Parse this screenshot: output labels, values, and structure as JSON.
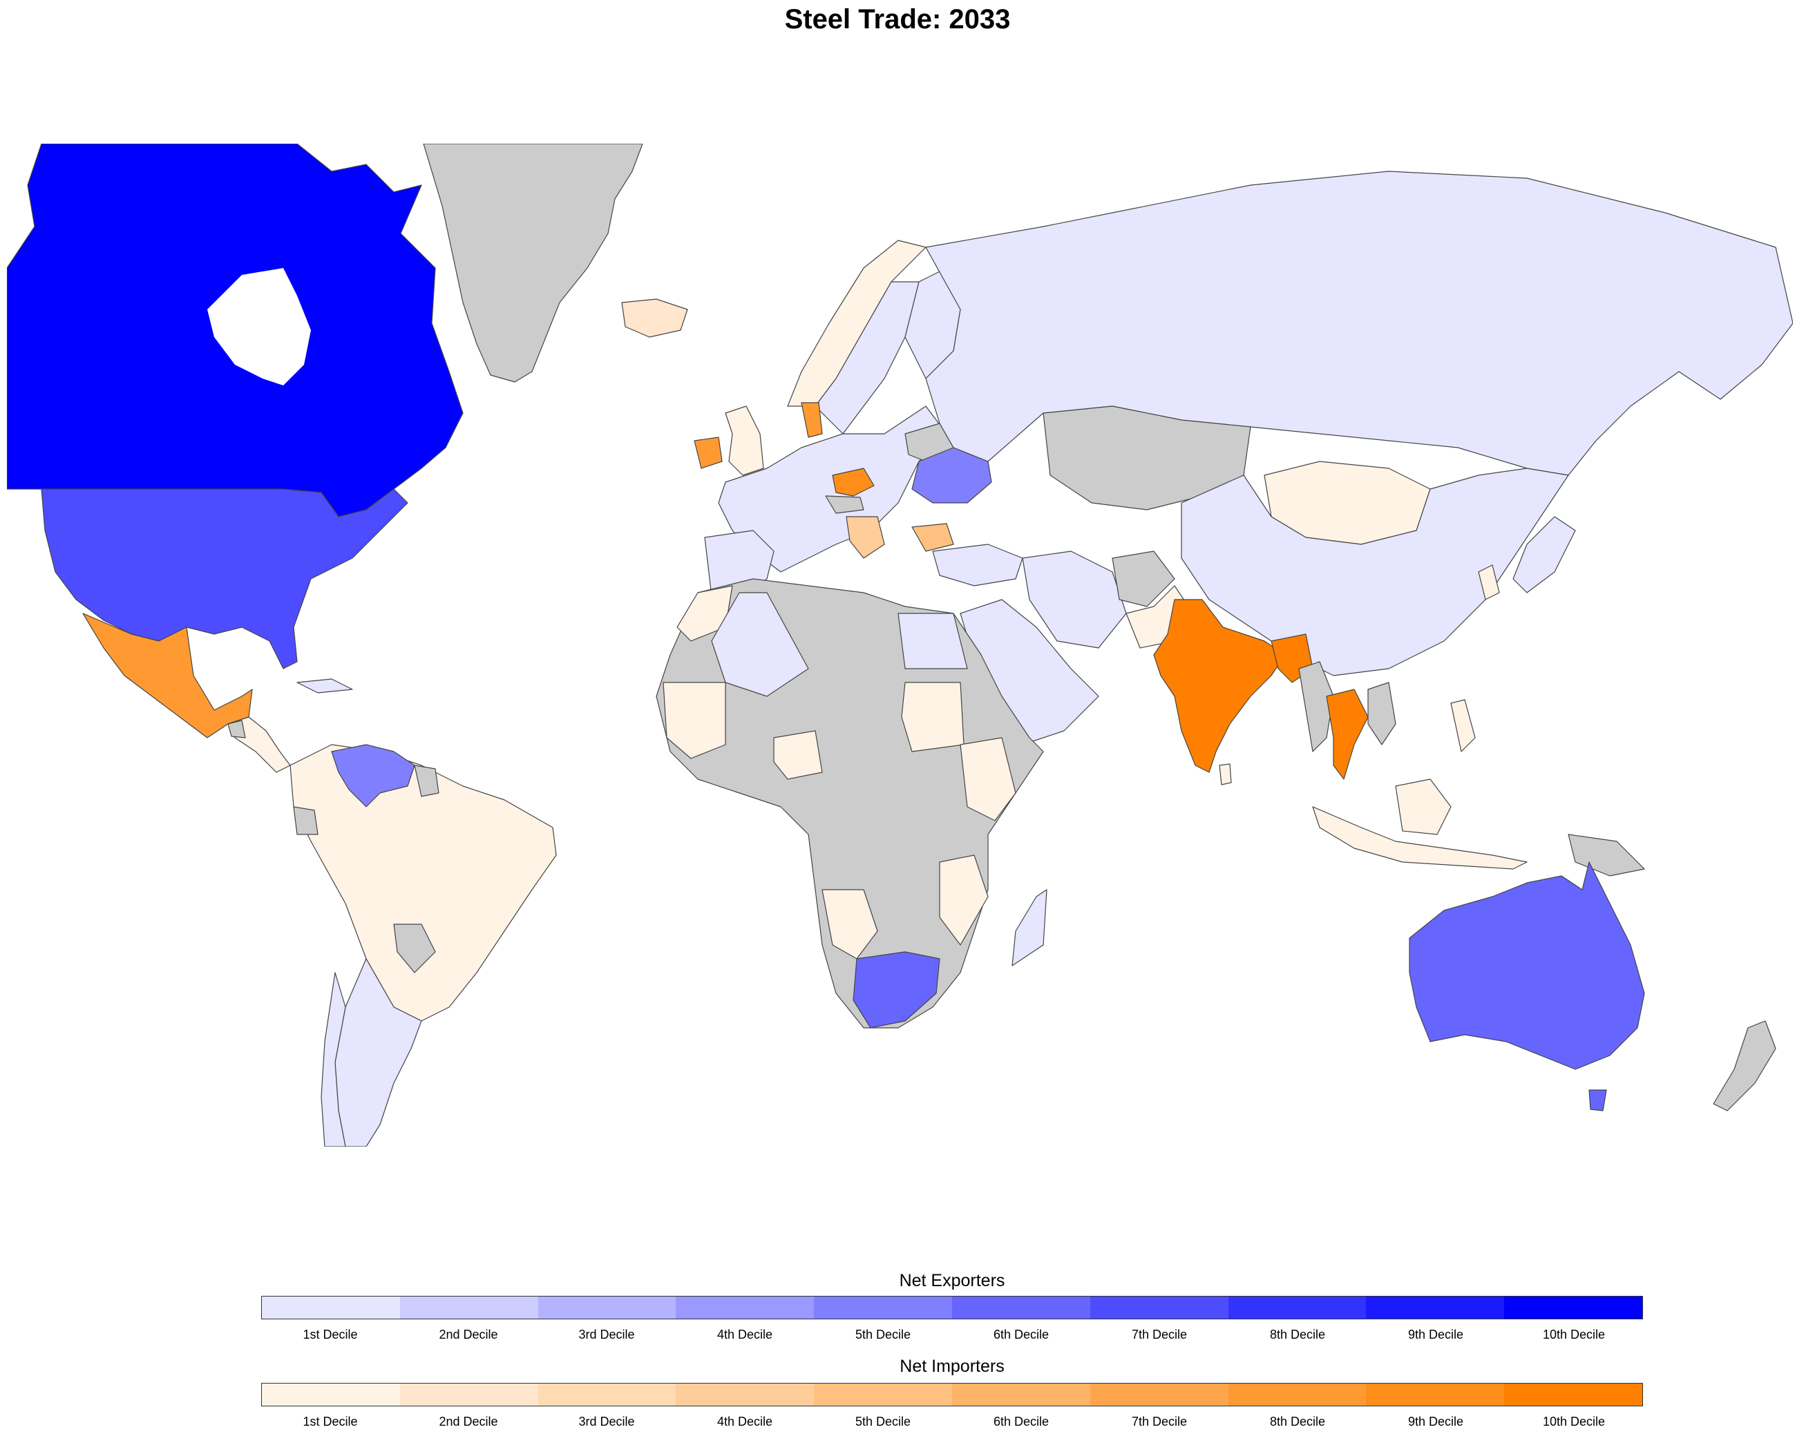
{
  "title": "Steel Trade: 2033",
  "colors": {
    "no_data": "#cccccc",
    "exporters": [
      "#e6e6ff",
      "#ccccff",
      "#b3b3ff",
      "#9999ff",
      "#8080ff",
      "#6666ff",
      "#4d4dff",
      "#3333ff",
      "#1a1aff",
      "#0000ff"
    ],
    "importers": [
      "#fff3e6",
      "#ffe6cc",
      "#ffdab3",
      "#ffcd99",
      "#ffc080",
      "#ffb366",
      "#ffa64d",
      "#ff9a33",
      "#ff8d1a",
      "#ff8000"
    ]
  },
  "legend": {
    "exporters_title": "Net Exporters",
    "importers_title": "Net Importers",
    "labels": [
      "1st Decile",
      "2nd Decile",
      "3rd Decile",
      "4th Decile",
      "5th Decile",
      "6th Decile",
      "7th Decile",
      "8th Decile",
      "9th Decile",
      "10th Decile"
    ]
  }
}
